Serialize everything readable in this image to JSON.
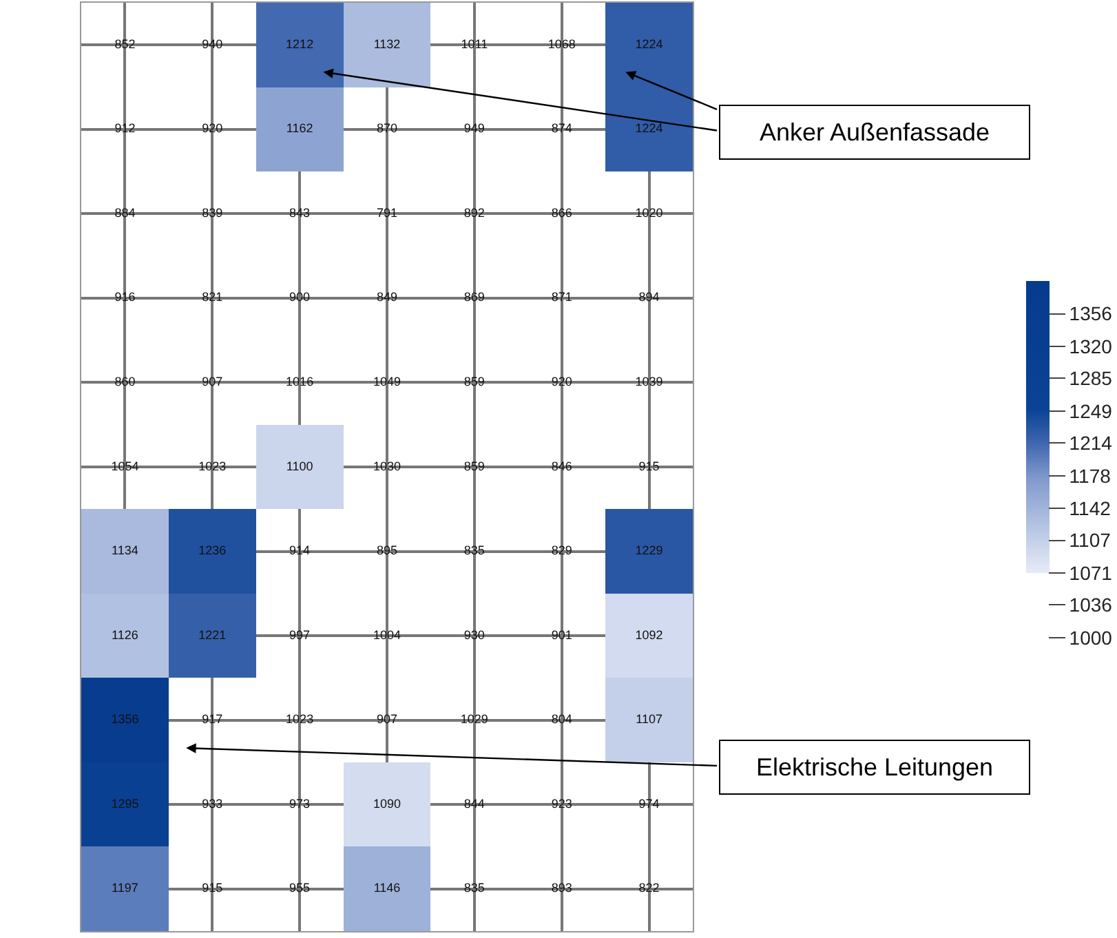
{
  "chart_data": {
    "type": "heatmap",
    "categories": [
      null,
      null,
      null,
      null,
      null,
      null,
      null
    ],
    "y_categories": [
      null,
      null,
      null,
      null,
      null,
      null,
      null,
      null,
      null,
      null,
      null
    ],
    "cells": [
      [
        852,
        940,
        1212,
        1132,
        1011,
        1068,
        1224
      ],
      [
        912,
        920,
        1162,
        870,
        949,
        874,
        1224
      ],
      [
        884,
        839,
        843,
        791,
        892,
        866,
        1020
      ],
      [
        916,
        821,
        900,
        849,
        869,
        871,
        894
      ],
      [
        860,
        907,
        1016,
        1049,
        859,
        920,
        1039
      ],
      [
        1054,
        1023,
        1100,
        1030,
        859,
        846,
        915
      ],
      [
        1134,
        1236,
        914,
        895,
        835,
        829,
        1229
      ],
      [
        1126,
        1221,
        997,
        1004,
        930,
        901,
        1092
      ],
      [
        1356,
        917,
        1023,
        907,
        1029,
        804,
        1107
      ],
      [
        1295,
        933,
        973,
        1090,
        844,
        923,
        974
      ],
      [
        1197,
        915,
        955,
        1146,
        835,
        893,
        822
      ]
    ],
    "data_labels": true,
    "clim": [
      1000,
      1392
    ],
    "cticks": [
      1000,
      1036,
      1071,
      1107,
      1142,
      1178,
      1214,
      1249,
      1285,
      1320,
      1356
    ],
    "grid": true,
    "annotations": [
      "Anker Außenfassade",
      "Elektrische Leitungen"
    ]
  }
}
